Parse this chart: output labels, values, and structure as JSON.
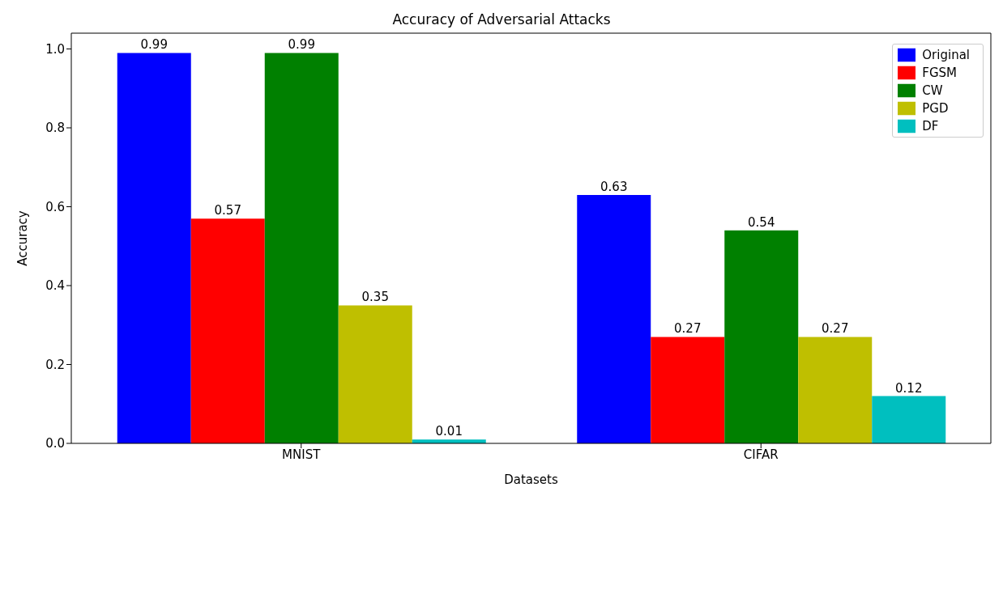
{
  "chart_data": {
    "type": "bar",
    "title": "Accuracy of Adversarial Attacks",
    "xlabel": "Datasets",
    "ylabel": "Accuracy",
    "categories": [
      "MNIST",
      "CIFAR"
    ],
    "series": [
      {
        "name": "Original",
        "color": "#0000ff",
        "values": [
          0.99,
          0.63
        ]
      },
      {
        "name": "FGSM",
        "color": "#ff0000",
        "values": [
          0.57,
          0.27
        ]
      },
      {
        "name": "CW",
        "color": "#008000",
        "values": [
          0.99,
          0.54
        ]
      },
      {
        "name": "PGD",
        "color": "#bfbf00",
        "values": [
          0.35,
          0.27
        ]
      },
      {
        "name": "DF",
        "color": "#00bfbf",
        "values": [
          0.01,
          0.12
        ]
      }
    ],
    "ylim": [
      0,
      1.04
    ],
    "yticks": [
      {
        "value": 0,
        "label": "0.0"
      },
      0.2,
      0.4,
      0.6,
      0.8,
      {
        "value": 1,
        "label": "1.0"
      }
    ],
    "data_labels": true,
    "grid": false,
    "legend": "top right"
  }
}
